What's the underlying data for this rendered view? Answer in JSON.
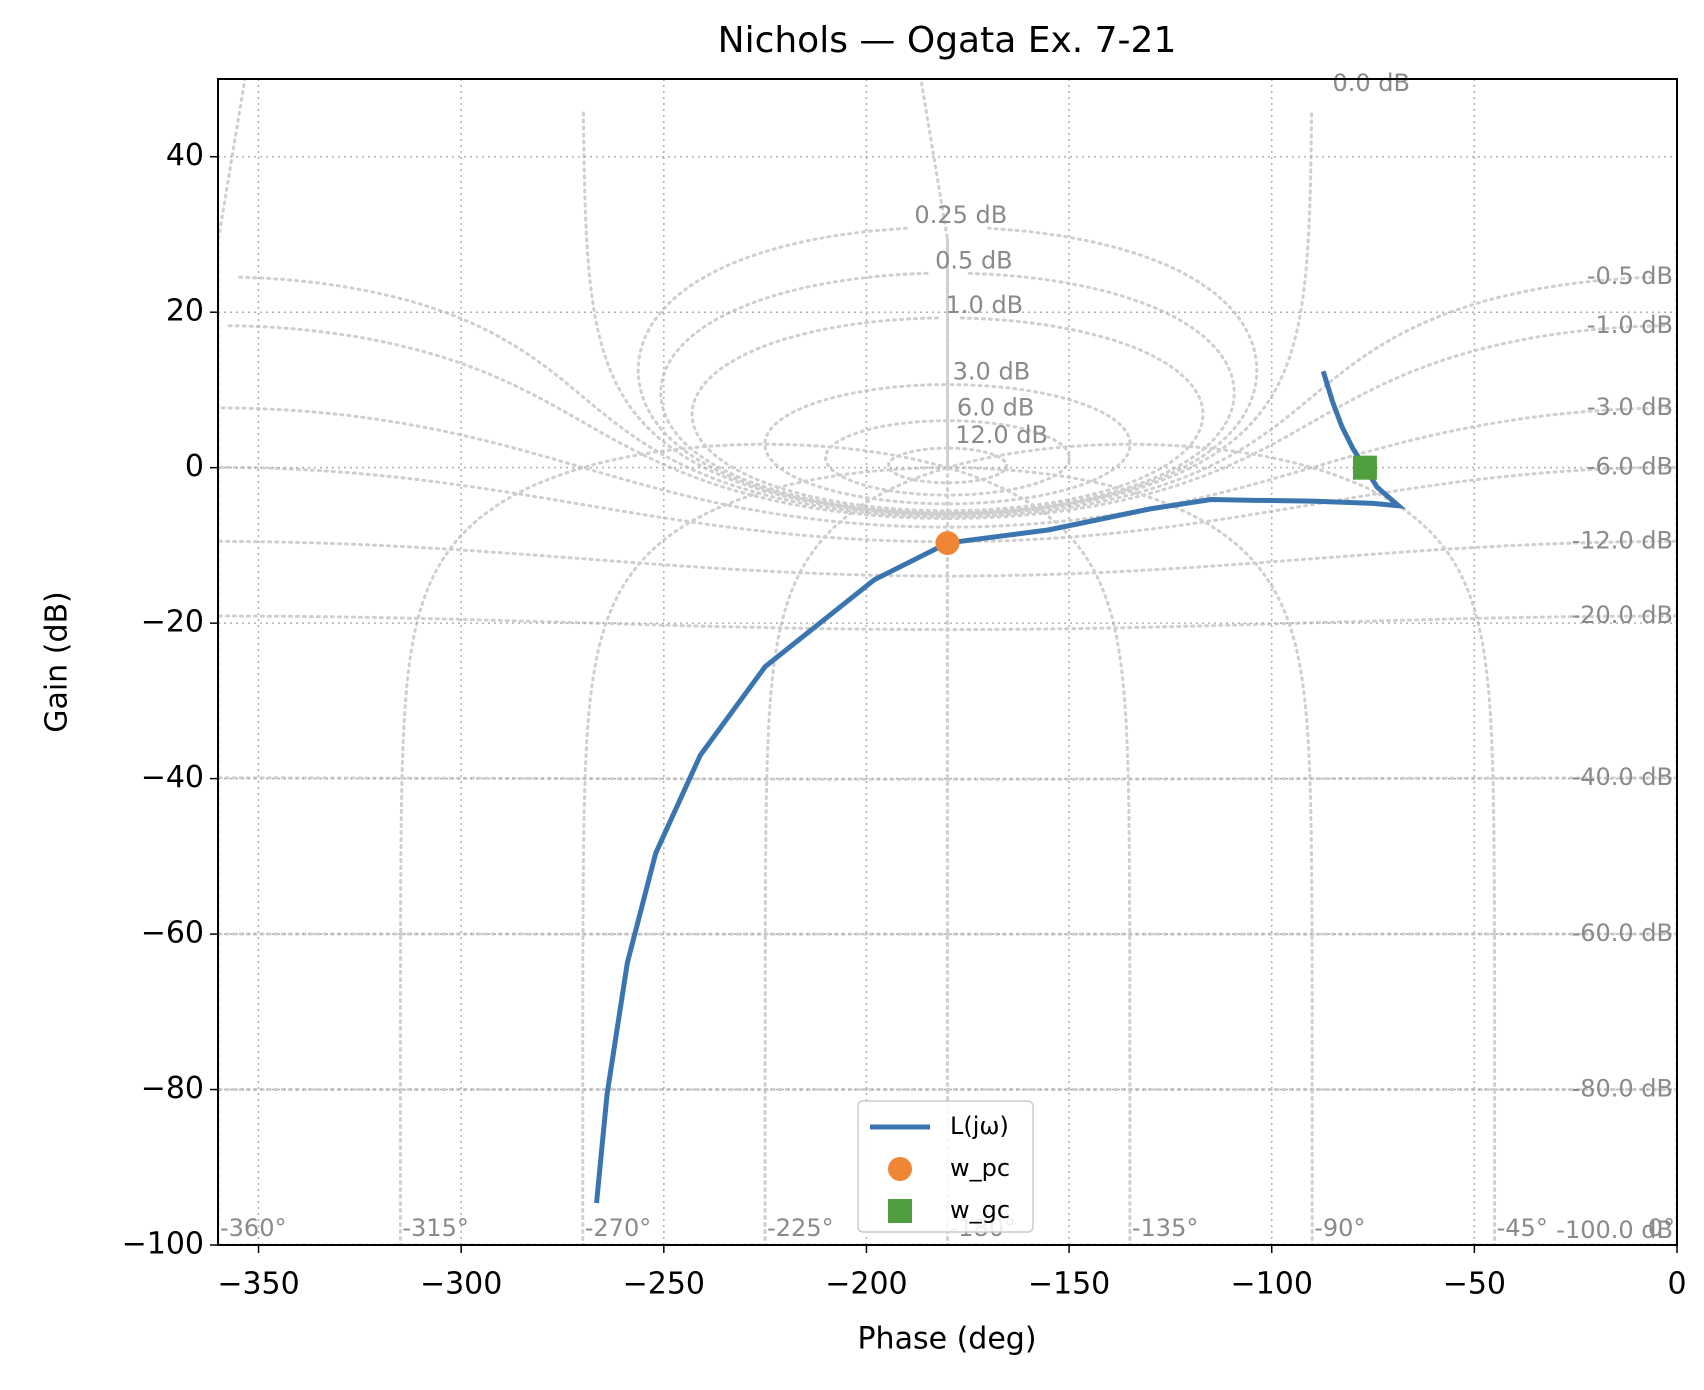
{
  "chart_data": {
    "type": "line",
    "title": "Nichols — Ogata Ex. 7-21",
    "xlabel": "Phase (deg)",
    "ylabel": "Gain (dB)",
    "xlim": [
      -360,
      0
    ],
    "ylim": [
      -100,
      50
    ],
    "xticks": [
      {
        "value": -350,
        "label": "−350"
      },
      {
        "value": -300,
        "label": "−300"
      },
      {
        "value": -250,
        "label": "−250"
      },
      {
        "value": -200,
        "label": "−200"
      },
      {
        "value": -150,
        "label": "−150"
      },
      {
        "value": -100,
        "label": "−100"
      },
      {
        "value": -50,
        "label": "−50"
      },
      0
    ],
    "yticks": [
      {
        "value": -100,
        "label": "−100"
      },
      {
        "value": -80,
        "label": "−80"
      },
      {
        "value": -60,
        "label": "−60"
      },
      {
        "value": -40,
        "label": "−40"
      },
      {
        "value": -20,
        "label": "−20"
      },
      0,
      20,
      40
    ],
    "grid": true,
    "legend": "lower center",
    "series": [
      {
        "name": "L(jω)",
        "color": "#3b75af",
        "marker": "none",
        "x": [
          -87.3,
          -85,
          -82.7,
          -80,
          -77,
          -74,
          -68.7,
          -75,
          -90,
          -104,
          -115,
          -130,
          -155,
          -180,
          -198,
          -225,
          -241,
          -252,
          -259,
          -264,
          -266.6
        ],
        "values": [
          12.4,
          8.5,
          5.3,
          2.5,
          0,
          -2.5,
          -4.9,
          -4.6,
          -4.3,
          -4.2,
          -4.1,
          -5.3,
          -8,
          -9.7,
          -14.4,
          -25.6,
          -37,
          -49.6,
          -63.7,
          -80.6,
          -94.6
        ]
      },
      {
        "name": "w_pc",
        "color": "#ef8636",
        "marker": "circle",
        "x": [
          -180
        ],
        "values": [
          -9.7
        ]
      },
      {
        "name": "w_gc",
        "color": "#519e3e",
        "marker": "square",
        "x": [
          -77
        ],
        "values": [
          0
        ]
      }
    ],
    "nichols_grid": {
      "magnitude": [
        {
          "value": 0,
          "label": "0.0 dB"
        },
        {
          "value": 0.25,
          "label": "0.25 dB"
        },
        {
          "value": 0.5,
          "label": "0.5 dB"
        },
        {
          "value": 1,
          "label": "1.0 dB"
        },
        {
          "value": 3,
          "label": "3.0 dB"
        },
        {
          "value": 6,
          "label": "6.0 dB"
        },
        {
          "value": 12,
          "label": "12.0 dB"
        },
        {
          "value": -0.5,
          "label": "-0.5 dB"
        },
        {
          "value": -1,
          "label": "-1.0 dB"
        },
        {
          "value": -3,
          "label": "-3.0 dB"
        },
        {
          "value": -6,
          "label": "-6.0 dB"
        },
        {
          "value": -12,
          "label": "-12.0 dB"
        },
        {
          "value": -20,
          "label": "-20.0 dB"
        },
        {
          "value": -40,
          "label": "-40.0 dB"
        },
        {
          "value": -60,
          "label": "-60.0 dB"
        },
        {
          "value": -80,
          "label": "-80.0 dB"
        },
        {
          "value": -100,
          "label": "-100.0 dB"
        }
      ],
      "phase": [
        {
          "value": -360,
          "label": "-360°"
        },
        {
          "value": -315,
          "label": "-315°"
        },
        {
          "value": -270,
          "label": "-270°"
        },
        {
          "value": -225,
          "label": "-225°"
        },
        {
          "value": -180,
          "label": "-180°"
        },
        {
          "value": -135,
          "label": "-135°"
        },
        {
          "value": -90,
          "label": "-90°"
        },
        {
          "value": -45,
          "label": "-45°"
        },
        {
          "value": 0,
          "label": "0°"
        }
      ]
    }
  }
}
